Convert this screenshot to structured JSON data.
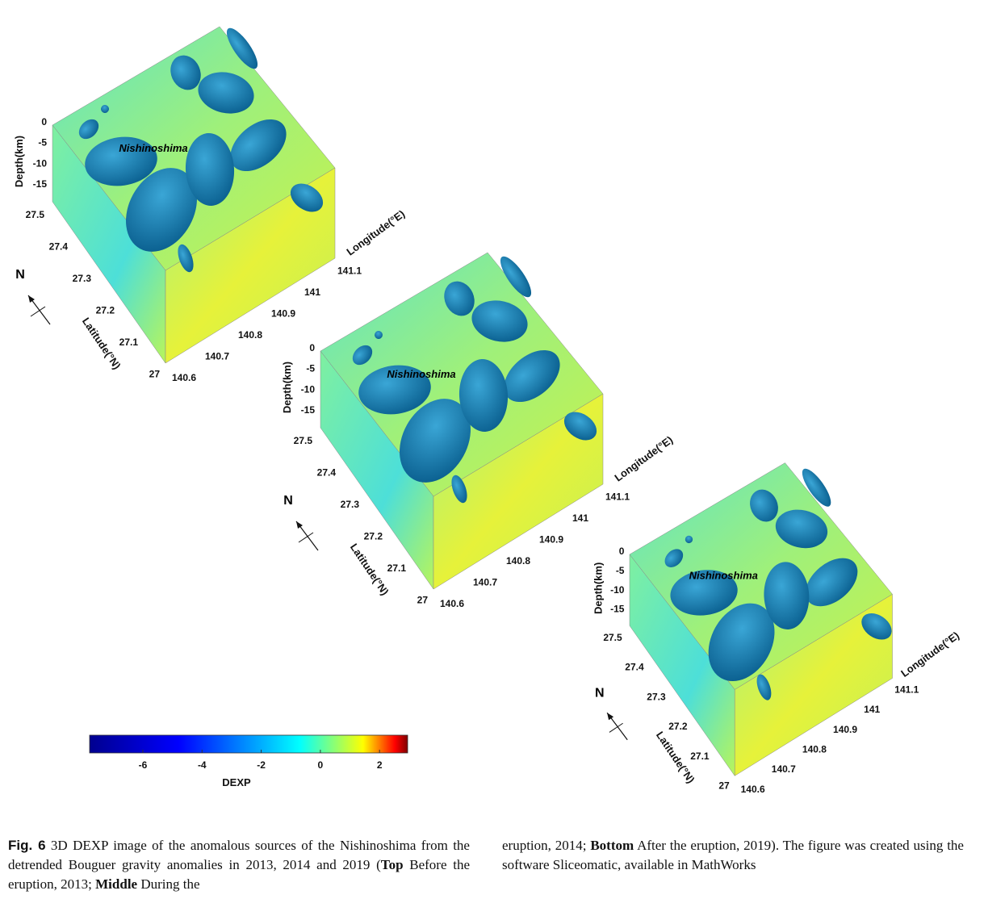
{
  "panels": [
    {
      "id": "top",
      "label": "Nishinoshima"
    },
    {
      "id": "middle",
      "label": "Nishinoshima"
    },
    {
      "id": "bottom",
      "label": "Nishinoshima"
    }
  ],
  "axes": {
    "depth_title": "Depth(km)",
    "depth_ticks": [
      "0",
      "-5",
      "-10",
      "-15"
    ],
    "latitude_title": "Latitude(°N)",
    "latitude_ticks": [
      "27.5",
      "27.4",
      "27.3",
      "27.2",
      "27.1",
      "27"
    ],
    "longitude_title": "Longitude(°E)",
    "longitude_ticks": [
      "140.6",
      "140.7",
      "140.8",
      "140.9",
      "141",
      "141.1"
    ],
    "north_label": "N"
  },
  "colorbar": {
    "label": "DEXP",
    "range": [
      -7.8,
      2.95
    ],
    "ticks": [
      "-6",
      "-4",
      "-2",
      "0",
      "2"
    ],
    "tick_values": [
      -6,
      -4,
      -2,
      0,
      2
    ],
    "colormap": "jet",
    "colors": [
      "#00008f",
      "#0000ff",
      "#00ffff",
      "#ffff00",
      "#ff0000",
      "#800000"
    ]
  },
  "caption": {
    "fig_label": "Fig. 6",
    "part1": " 3D DEXP image of the anomalous sources of the Nishinoshima from the detrended Bouguer gravity anomalies in 2013, 2014 and 2019 (",
    "top_word": "Top",
    "part2": " Before the eruption, 2013; ",
    "middle_word": "Middle",
    "part3": " During the",
    "part4": "eruption, 2014; ",
    "bottom_word": "Bottom",
    "part5": " After the eruption, 2019). The figure was created using the software Sliceomatic, available in MathWorks"
  }
}
